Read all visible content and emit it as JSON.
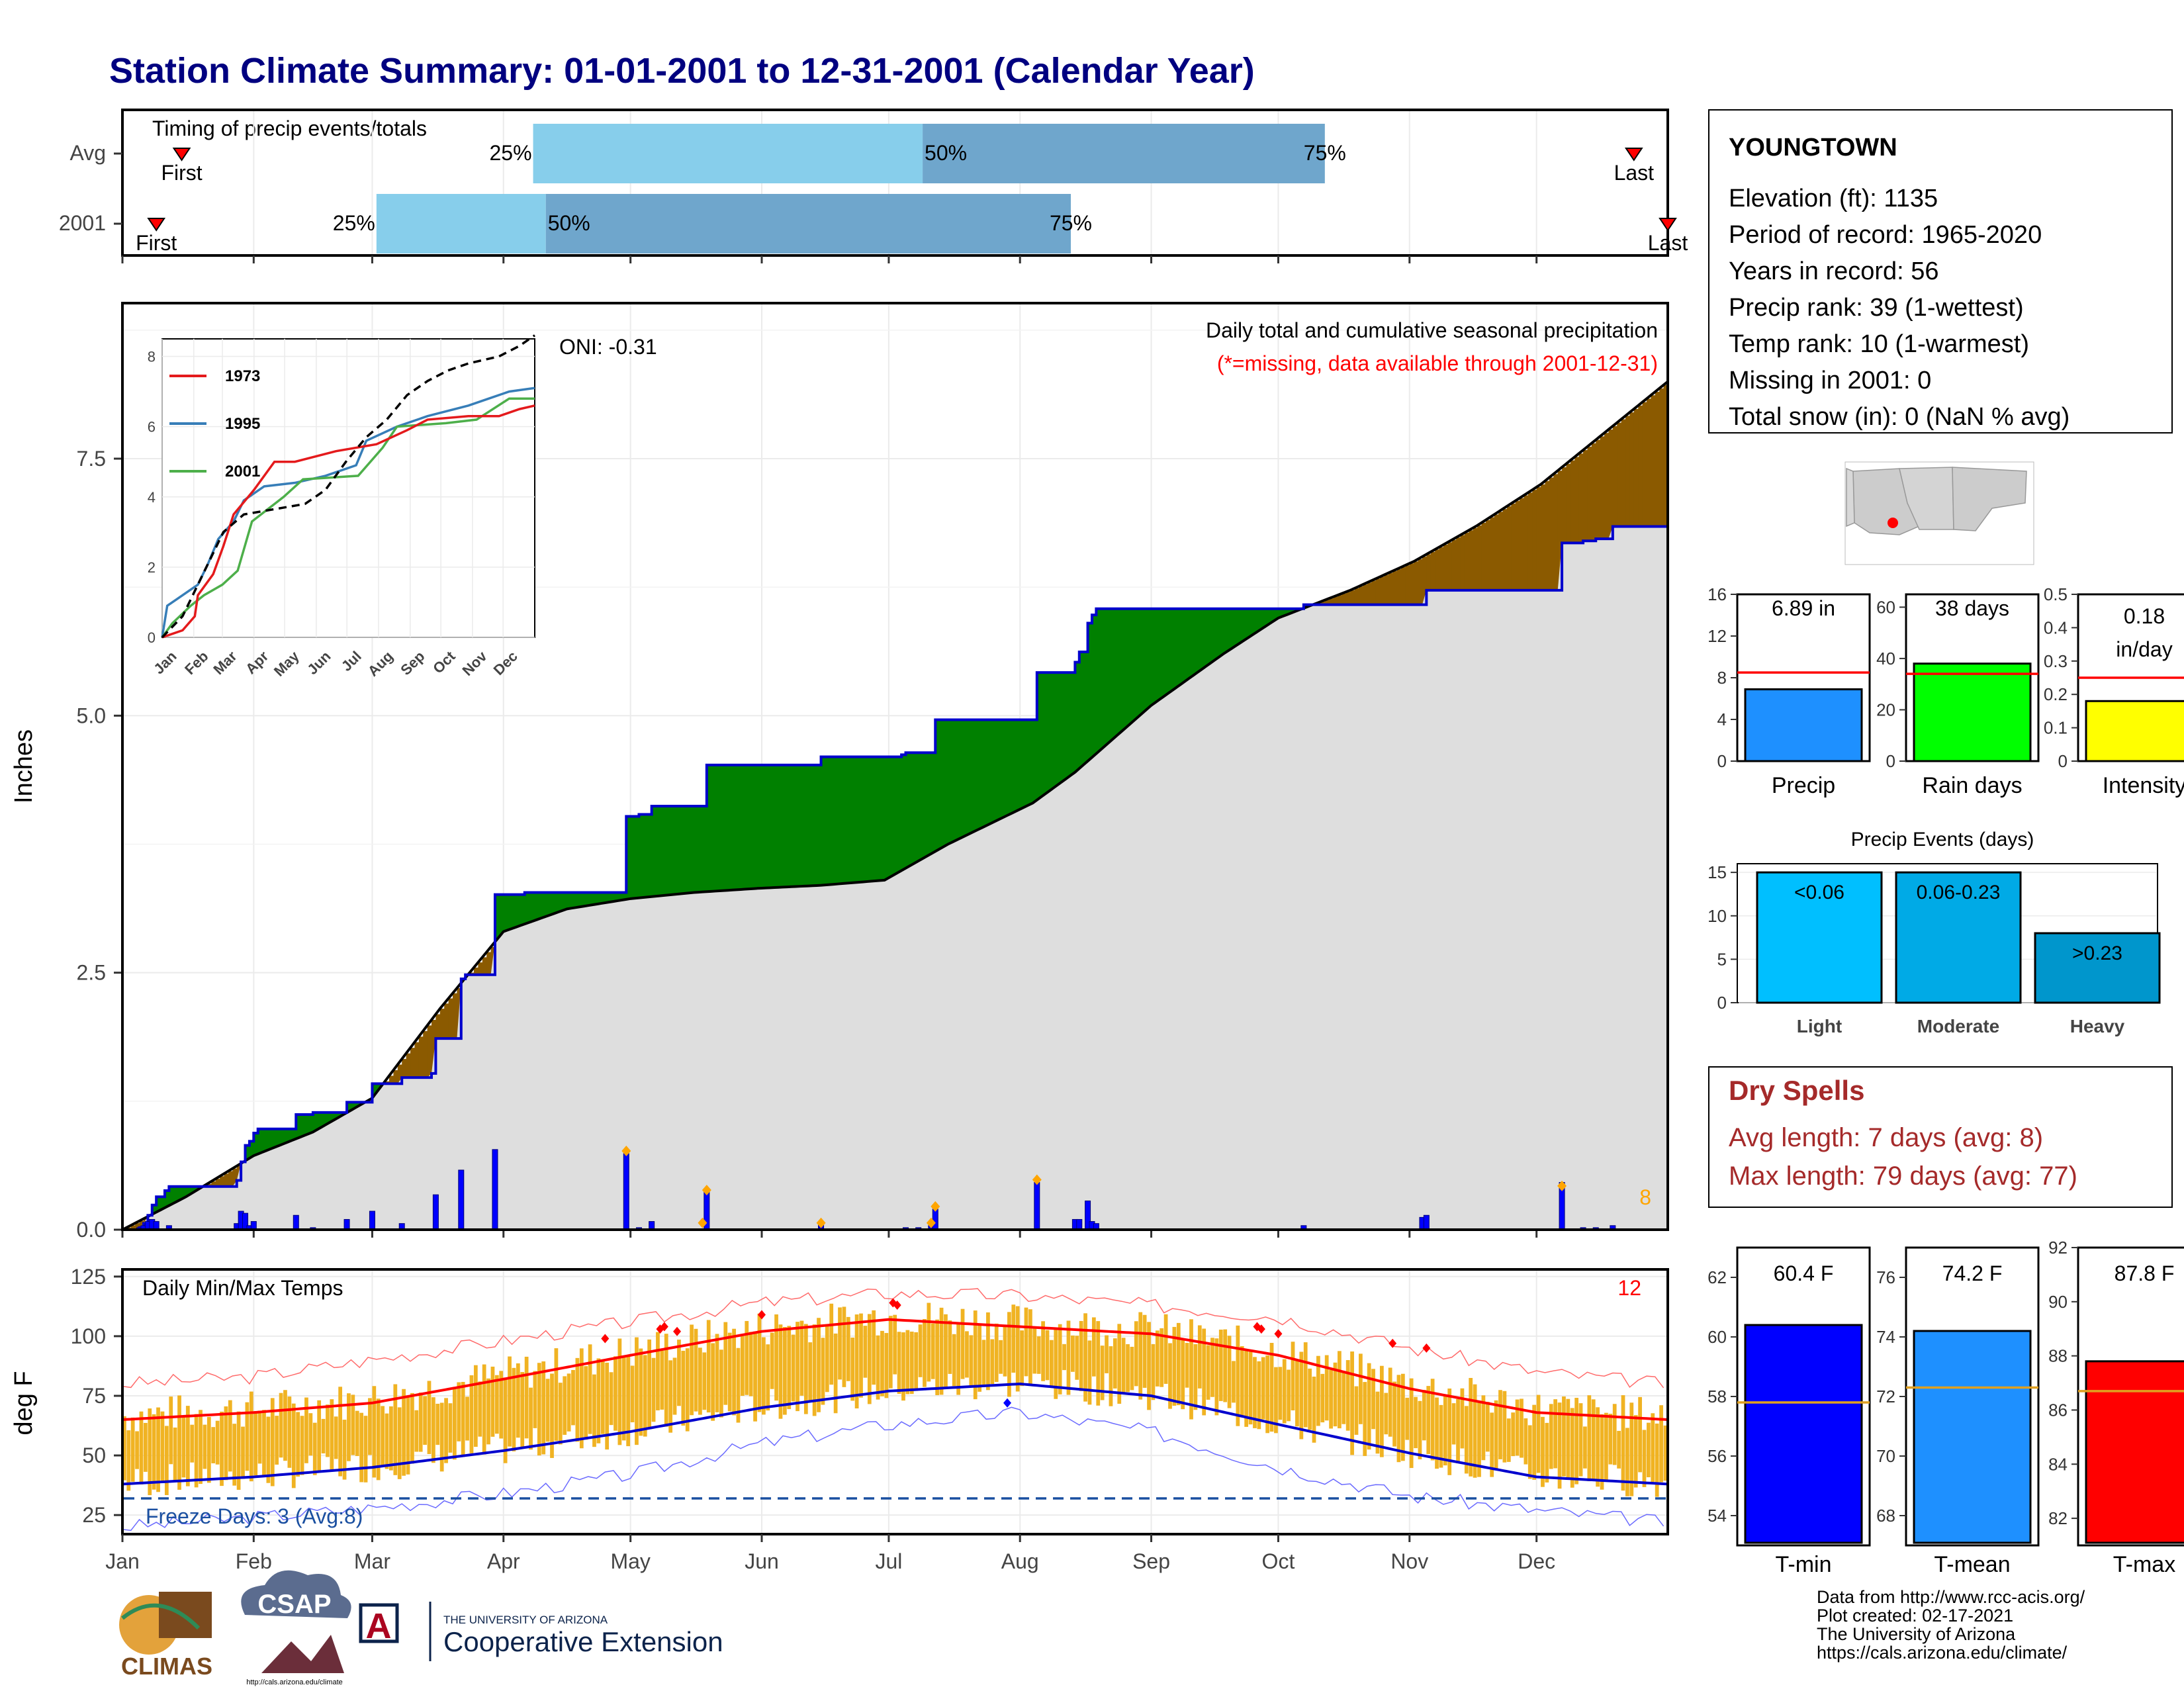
{
  "title": "Station Climate Summary: 01-01-2001 to 12-31-2001 (Calendar Year)",
  "months": [
    "Jan",
    "Feb",
    "Mar",
    "Apr",
    "May",
    "Jun",
    "Jul",
    "Aug",
    "Sep",
    "Oct",
    "Nov",
    "Dec"
  ],
  "timing": {
    "title": "Timing of precip events/totals",
    "rows": [
      {
        "label": "Avg",
        "p25": "25%",
        "p50": "50%",
        "p75": "75%",
        "first": "First",
        "last": "Last",
        "first_day": 14,
        "d25": 97,
        "d50": 189,
        "d75": 284,
        "last_day": 357
      },
      {
        "label": "2001",
        "p25": "25%",
        "p50": "50%",
        "p75": "75%",
        "first": "First",
        "last": "Last",
        "first_day": 8,
        "d25": 60,
        "d50": 100,
        "d75": 224,
        "last_day": 365
      }
    ]
  },
  "station": {
    "name": "YOUNGTOWN",
    "lines": [
      "Elevation (ft): 1135",
      "Period of record: 1965-2020",
      "Years in record: 56",
      "Precip rank: 39 (1-wettest)",
      "Temp rank: 10 (1-warmest)",
      "Missing in 2001: 0",
      "Total snow (in): 0 (NaN % avg)"
    ]
  },
  "precip_panel": {
    "ylabel": "Inches",
    "yticks": [
      0.0,
      2.5,
      5.0,
      7.5
    ],
    "ytick_labels": [
      "0.0",
      "2.5",
      "5.0",
      "7.5"
    ],
    "ylim": [
      0,
      9.0
    ],
    "oni": "ONI: -0.31",
    "note1": "Daily total and cumulative seasonal precipitation",
    "note2": "(*=missing, data available through 2001-12-31)",
    "count": "8",
    "avg_cum": [
      [
        0,
        0
      ],
      [
        15,
        0.32
      ],
      [
        31,
        0.72
      ],
      [
        45,
        0.95
      ],
      [
        59,
        1.28
      ],
      [
        75,
        2.15
      ],
      [
        90,
        2.9
      ],
      [
        105,
        3.12
      ],
      [
        120,
        3.22
      ],
      [
        135,
        3.28
      ],
      [
        150,
        3.32
      ],
      [
        165,
        3.35
      ],
      [
        180,
        3.4
      ],
      [
        195,
        3.75
      ],
      [
        205,
        3.95
      ],
      [
        215,
        4.15
      ],
      [
        225,
        4.45
      ],
      [
        243,
        5.1
      ],
      [
        260,
        5.6
      ],
      [
        273,
        5.95
      ],
      [
        290,
        6.22
      ],
      [
        305,
        6.5
      ],
      [
        320,
        6.85
      ],
      [
        335,
        7.25
      ],
      [
        350,
        7.75
      ],
      [
        365,
        8.25
      ]
    ],
    "cum_2001": [
      [
        0,
        0
      ],
      [
        4,
        0.02
      ],
      [
        5,
        0.06
      ],
      [
        6,
        0.14
      ],
      [
        7,
        0.24
      ],
      [
        8,
        0.32
      ],
      [
        10,
        0.38
      ],
      [
        11,
        0.42
      ],
      [
        26,
        0.42
      ],
      [
        27,
        0.48
      ],
      [
        28,
        0.66
      ],
      [
        29,
        0.82
      ],
      [
        30,
        0.86
      ],
      [
        31,
        0.94
      ],
      [
        32,
        0.98
      ],
      [
        40,
        0.98
      ],
      [
        41,
        1.12
      ],
      [
        44,
        1.12
      ],
      [
        45,
        1.14
      ],
      [
        52,
        1.14
      ],
      [
        53,
        1.24
      ],
      [
        58,
        1.24
      ],
      [
        59,
        1.42
      ],
      [
        65,
        1.42
      ],
      [
        66,
        1.48
      ],
      [
        72,
        1.48
      ],
      [
        73,
        1.52
      ],
      [
        74,
        1.86
      ],
      [
        80,
        2.44
      ],
      [
        81,
        2.48
      ],
      [
        87,
        2.48
      ],
      [
        88,
        3.26
      ],
      [
        95,
        3.28
      ],
      [
        118,
        3.28
      ],
      [
        119,
        4.02
      ],
      [
        122,
        4.04
      ],
      [
        125,
        4.12
      ],
      [
        137,
        4.12
      ],
      [
        138,
        4.52
      ],
      [
        153,
        4.52
      ],
      [
        165,
        4.6
      ],
      [
        172,
        4.6
      ],
      [
        173,
        4.6
      ],
      [
        184,
        4.62
      ],
      [
        185,
        4.64
      ],
      [
        191,
        4.64
      ],
      [
        192,
        4.96
      ],
      [
        215,
        4.96
      ],
      [
        216,
        5.42
      ],
      [
        224,
        5.42
      ],
      [
        225,
        5.52
      ],
      [
        226,
        5.62
      ],
      [
        228,
        5.9
      ],
      [
        229,
        5.98
      ],
      [
        230,
        6.04
      ],
      [
        278,
        6.04
      ],
      [
        279,
        6.08
      ],
      [
        305,
        6.08
      ],
      [
        308,
        6.22
      ],
      [
        339,
        6.22
      ],
      [
        340,
        6.68
      ],
      [
        345,
        6.7
      ],
      [
        348,
        6.72
      ],
      [
        352,
        6.84
      ],
      [
        365,
        6.84
      ]
    ],
    "daily_2001": [
      [
        4,
        0.02
      ],
      [
        5,
        0.04
      ],
      [
        6,
        0.08
      ],
      [
        7,
        0.1
      ],
      [
        8,
        0.08
      ],
      [
        11,
        0.04
      ],
      [
        27,
        0.06
      ],
      [
        28,
        0.18
      ],
      [
        29,
        0.16
      ],
      [
        30,
        0.04
      ],
      [
        31,
        0.08
      ],
      [
        41,
        0.14
      ],
      [
        45,
        0.02
      ],
      [
        53,
        0.1
      ],
      [
        59,
        0.18
      ],
      [
        66,
        0.06
      ],
      [
        74,
        0.34
      ],
      [
        80,
        0.58
      ],
      [
        88,
        0.78
      ],
      [
        119,
        0.74
      ],
      [
        122,
        0.02
      ],
      [
        125,
        0.08
      ],
      [
        138,
        0.4
      ],
      [
        165,
        0.08
      ],
      [
        185,
        0.02
      ],
      [
        188,
        0.02
      ],
      [
        191,
        0.04
      ],
      [
        192,
        0.2
      ],
      [
        216,
        0.46
      ],
      [
        225,
        0.1
      ],
      [
        226,
        0.1
      ],
      [
        228,
        0.28
      ],
      [
        229,
        0.08
      ],
      [
        230,
        0.06
      ],
      [
        279,
        0.04
      ],
      [
        307,
        0.12
      ],
      [
        308,
        0.14
      ],
      [
        340,
        0.46
      ],
      [
        345,
        0.02
      ],
      [
        348,
        0.02
      ],
      [
        352,
        0.04
      ]
    ],
    "record_markers": [
      [
        119,
        0.74
      ],
      [
        138,
        0.36
      ],
      [
        137,
        0.04
      ],
      [
        165,
        0.04
      ],
      [
        192,
        0.2
      ],
      [
        191,
        0.04
      ],
      [
        216,
        0.46
      ],
      [
        340,
        0.4
      ]
    ],
    "inset": {
      "yticks": [
        0,
        2,
        4,
        6,
        8
      ],
      "ytick_labels": [
        "0",
        "2",
        "4",
        "6",
        "8"
      ],
      "ylim": [
        0,
        8.5
      ],
      "months": [
        "Jan",
        "Feb",
        "Mar",
        "Apr",
        "May",
        "Jun",
        "Jul",
        "Aug",
        "Sep",
        "Oct",
        "Nov",
        "Dec"
      ],
      "legend": [
        "1973",
        "1995",
        "2001"
      ],
      "colors": [
        "#e41a1c",
        "#377eb8",
        "#4daf4a"
      ],
      "avg": [
        [
          0,
          0
        ],
        [
          20,
          0.6
        ],
        [
          40,
          1.8
        ],
        [
          60,
          3.0
        ],
        [
          80,
          3.5
        ],
        [
          100,
          3.6
        ],
        [
          120,
          3.7
        ],
        [
          140,
          3.8
        ],
        [
          160,
          4.2
        ],
        [
          180,
          5.0
        ],
        [
          200,
          5.7
        ],
        [
          220,
          6.2
        ],
        [
          240,
          6.9
        ],
        [
          260,
          7.3
        ],
        [
          280,
          7.6
        ],
        [
          300,
          7.8
        ],
        [
          330,
          8.0
        ],
        [
          350,
          8.3
        ],
        [
          365,
          8.6
        ]
      ],
      "s1973": [
        [
          0,
          0
        ],
        [
          20,
          0.2
        ],
        [
          32,
          0.6
        ],
        [
          35,
          1.2
        ],
        [
          50,
          1.8
        ],
        [
          60,
          2.6
        ],
        [
          70,
          3.5
        ],
        [
          90,
          4.2
        ],
        [
          110,
          5.0
        ],
        [
          130,
          5.0
        ],
        [
          170,
          5.3
        ],
        [
          210,
          5.5
        ],
        [
          240,
          5.9
        ],
        [
          260,
          6.2
        ],
        [
          300,
          6.3
        ],
        [
          330,
          6.3
        ],
        [
          350,
          6.5
        ],
        [
          365,
          6.6
        ]
      ],
      "s1995": [
        [
          0,
          0
        ],
        [
          5,
          0.9
        ],
        [
          15,
          1.1
        ],
        [
          35,
          1.5
        ],
        [
          45,
          2.1
        ],
        [
          55,
          2.8
        ],
        [
          70,
          3.3
        ],
        [
          80,
          3.9
        ],
        [
          100,
          4.3
        ],
        [
          130,
          4.4
        ],
        [
          160,
          4.6
        ],
        [
          190,
          4.9
        ],
        [
          200,
          5.6
        ],
        [
          230,
          6.0
        ],
        [
          260,
          6.3
        ],
        [
          300,
          6.6
        ],
        [
          320,
          6.8
        ],
        [
          340,
          7.0
        ],
        [
          365,
          7.1
        ]
      ],
      "s2001": [
        [
          0,
          0
        ],
        [
          10,
          0.4
        ],
        [
          28,
          0.9
        ],
        [
          41,
          1.2
        ],
        [
          59,
          1.5
        ],
        [
          74,
          1.9
        ],
        [
          80,
          2.5
        ],
        [
          88,
          3.3
        ],
        [
          119,
          4.0
        ],
        [
          138,
          4.5
        ],
        [
          192,
          4.6
        ],
        [
          216,
          5.4
        ],
        [
          230,
          6.0
        ],
        [
          278,
          6.1
        ],
        [
          308,
          6.2
        ],
        [
          340,
          6.8
        ],
        [
          365,
          6.8
        ]
      ]
    }
  },
  "temp_panel": {
    "ylabel": "deg F",
    "title": "Daily Min/Max Temps",
    "count": "12",
    "yticks": [
      25,
      50,
      75,
      100,
      125
    ],
    "ytick_labels": [
      "25",
      "50",
      "75",
      "100",
      "125"
    ],
    "ylim": [
      17,
      128
    ],
    "freeze_label": "Freeze Days: 3 (Avg:8)",
    "freeze_line": 32,
    "avg_max": [
      [
        0,
        65
      ],
      [
        31,
        68
      ],
      [
        59,
        72
      ],
      [
        90,
        82
      ],
      [
        120,
        92
      ],
      [
        151,
        102
      ],
      [
        181,
        107
      ],
      [
        212,
        104
      ],
      [
        243,
        101
      ],
      [
        273,
        92
      ],
      [
        304,
        78
      ],
      [
        334,
        68
      ],
      [
        365,
        65
      ]
    ],
    "avg_min": [
      [
        0,
        38
      ],
      [
        31,
        41
      ],
      [
        59,
        45
      ],
      [
        90,
        52
      ],
      [
        120,
        60
      ],
      [
        151,
        70
      ],
      [
        181,
        77
      ],
      [
        212,
        80
      ],
      [
        243,
        75
      ],
      [
        273,
        63
      ],
      [
        304,
        51
      ],
      [
        334,
        41
      ],
      [
        365,
        38
      ]
    ],
    "rec_max": [
      [
        0,
        80
      ],
      [
        31,
        83
      ],
      [
        59,
        90
      ],
      [
        90,
        98
      ],
      [
        120,
        106
      ],
      [
        151,
        114
      ],
      [
        181,
        118
      ],
      [
        212,
        117
      ],
      [
        243,
        113
      ],
      [
        273,
        108
      ],
      [
        304,
        95
      ],
      [
        334,
        85
      ],
      [
        365,
        80
      ]
    ],
    "rec_min": [
      [
        0,
        20
      ],
      [
        31,
        24
      ],
      [
        59,
        28
      ],
      [
        90,
        34
      ],
      [
        120,
        42
      ],
      [
        151,
        55
      ],
      [
        181,
        63
      ],
      [
        212,
        68
      ],
      [
        243,
        60
      ],
      [
        273,
        45
      ],
      [
        304,
        33
      ],
      [
        334,
        27
      ],
      [
        365,
        22
      ]
    ],
    "record_highs": [
      [
        114,
        99
      ],
      [
        127,
        103
      ],
      [
        128,
        104
      ],
      [
        131,
        102
      ],
      [
        151,
        109
      ],
      [
        182,
        114
      ],
      [
        183,
        113
      ],
      [
        268,
        104
      ],
      [
        269,
        103
      ],
      [
        273,
        101
      ],
      [
        300,
        97
      ],
      [
        308,
        95
      ]
    ],
    "record_lows": [
      [
        209,
        72
      ]
    ]
  },
  "bars_precip": [
    {
      "label": "Precip",
      "value": "6.89 in",
      "v": 6.89,
      "avg": 8.5,
      "ymax": 16,
      "yticks": [
        0,
        4,
        8,
        12,
        16
      ],
      "color": "#1e90ff"
    },
    {
      "label": "Rain days",
      "value": "38 days",
      "v": 38,
      "avg": 34,
      "ymax": 65,
      "yticks": [
        0,
        20,
        40,
        60
      ],
      "color": "#00ff00"
    },
    {
      "label": "Intensity",
      "value": "0.18",
      "unit": "in/day",
      "v": 0.18,
      "avg": 0.25,
      "ymax": 0.5,
      "yticks": [
        0.0,
        0.1,
        0.2,
        0.3,
        0.4,
        0.5
      ],
      "color": "#ffff00"
    }
  ],
  "events": {
    "title": "Precip Events (days)",
    "yticks": [
      0,
      5,
      10,
      15
    ],
    "ymax": 16,
    "bars": [
      {
        "cat": "Light",
        "label": "<0.06",
        "v": 15,
        "color": "#00bfff"
      },
      {
        "cat": "Moderate",
        "label": "0.06-0.23",
        "v": 15,
        "color": "#00aae6"
      },
      {
        "cat": "Heavy",
        "label": ">0.23",
        "v": 8,
        "color": "#0096cc"
      }
    ]
  },
  "dry_spells": {
    "title": "Dry Spells",
    "avg_line": "Avg length: 7 days (avg: 8)",
    "max_line": "Max length: 79 days (avg: 77)"
  },
  "bars_temp": [
    {
      "label": "T-min",
      "value": "60.4 F",
      "v": 60.4,
      "avg": 57.8,
      "ymin": 53,
      "ymax": 63,
      "yticks": [
        54,
        56,
        58,
        60,
        62
      ],
      "color": "#0000ff"
    },
    {
      "label": "T-mean",
      "value": "74.2 F",
      "v": 74.2,
      "avg": 72.3,
      "ymin": 67,
      "ymax": 77,
      "yticks": [
        68,
        70,
        72,
        74,
        76
      ],
      "color": "#1e90ff"
    },
    {
      "label": "T-max",
      "value": "87.8 F",
      "v": 87.8,
      "avg": 86.7,
      "ymin": 81,
      "ymax": 92,
      "yticks": [
        82,
        84,
        86,
        88,
        90,
        92
      ],
      "color": "#ff0000"
    }
  ],
  "footer": {
    "lines": [
      "Data from http://www.rcc-acis.org/",
      "Plot created: 02-17-2021",
      "The University of Arizona",
      "https://cals.arizona.edu/climate/"
    ],
    "logo_climas": "CLIMAS",
    "logo_csap": "CSAP",
    "logo_csap_url": "http://cals.arizona.edu/climate",
    "logo_ua_small": "THE UNIVERSITY OF ARIZONA",
    "logo_ua": "Cooperative Extension",
    "logo_ua_letter": "A"
  }
}
